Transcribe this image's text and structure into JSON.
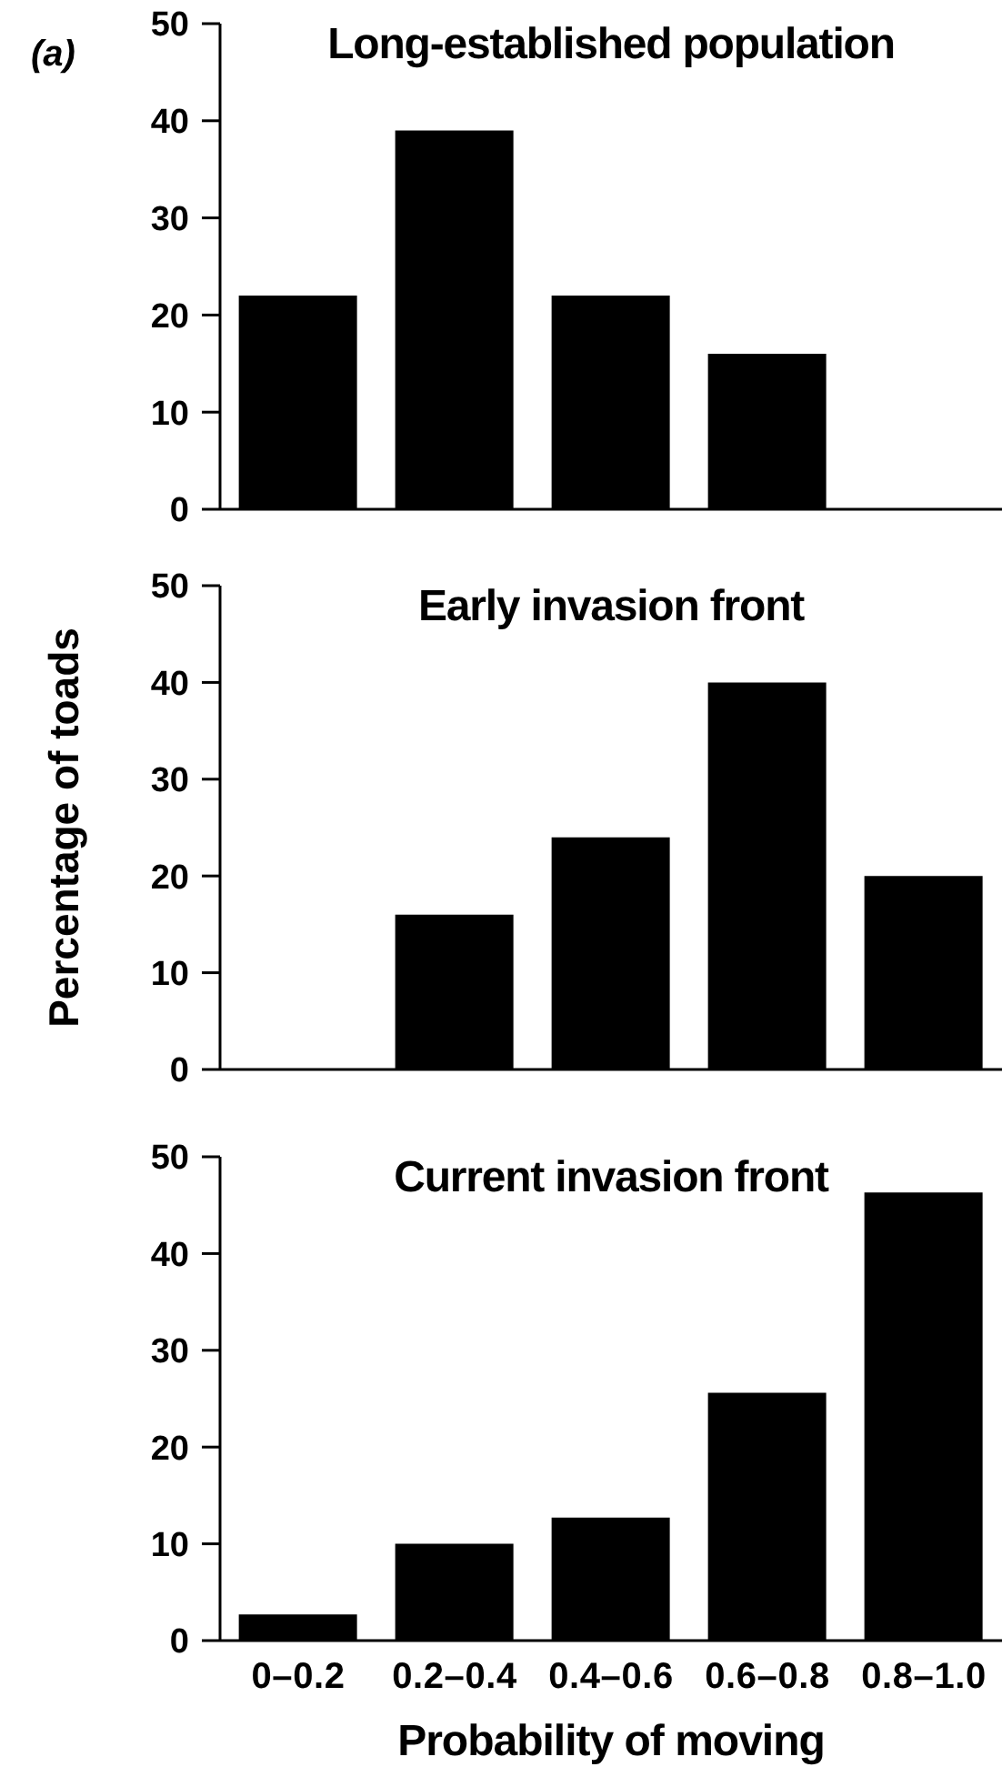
{
  "chart_data": [
    {
      "type": "bar",
      "title": "Long-established population",
      "annotations": [
        "(a)"
      ],
      "categories": [
        null,
        null,
        null,
        null,
        null
      ],
      "values": [
        22,
        39,
        22,
        16,
        0
      ],
      "color": "#000000",
      "ylim": [
        0,
        50
      ],
      "yticks": [
        0,
        10,
        20,
        30,
        40,
        50
      ]
    },
    {
      "type": "bar",
      "title": "Early invasion front",
      "ylabel": "Percentage of toads",
      "categories": [
        null,
        null,
        null,
        null,
        null
      ],
      "values": [
        0,
        16,
        24,
        40,
        20
      ],
      "color": "#000000",
      "ylim": [
        0,
        50
      ],
      "yticks": [
        0,
        10,
        20,
        30,
        40,
        50
      ]
    },
    {
      "type": "bar",
      "title": "Current invasion front",
      "xlabel": "Probability of moving",
      "categories": [
        "0–0.2",
        "0.2–0.4",
        "0.4–0.6",
        "0.6–0.8",
        "0.8–1.0"
      ],
      "values": [
        2.7,
        10,
        12.7,
        25.6,
        46.3
      ],
      "color": "#000000",
      "ylim": [
        0,
        50
      ],
      "yticks": [
        0,
        10,
        20,
        30,
        40,
        50
      ]
    }
  ]
}
